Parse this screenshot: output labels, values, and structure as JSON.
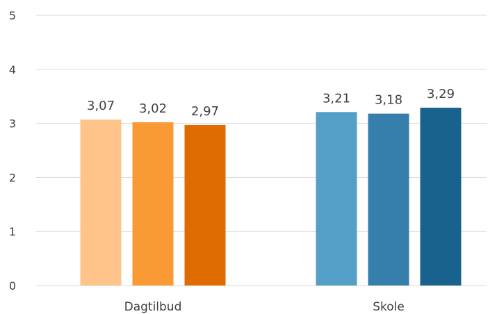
{
  "chart_data": {
    "type": "bar",
    "categories": [
      "Dagtilbud",
      "Skole"
    ],
    "ylim": [
      0,
      5
    ],
    "yticks": [
      "0",
      "1",
      "2",
      "3",
      "4",
      "5"
    ],
    "grid": true,
    "groups": [
      {
        "category": "Dagtilbud",
        "values": [
          3.07,
          3.02,
          2.97
        ],
        "labels": [
          "3,07",
          "3,02",
          "2,97"
        ],
        "colors": [
          "#FFC48A",
          "#F99A34",
          "#DE6C00"
        ]
      },
      {
        "category": "Skole",
        "values": [
          3.21,
          3.18,
          3.29
        ],
        "labels": [
          "3,21",
          "3,18",
          "3,29"
        ],
        "colors": [
          "#549FC8",
          "#367FAD",
          "#18628D"
        ]
      }
    ]
  }
}
